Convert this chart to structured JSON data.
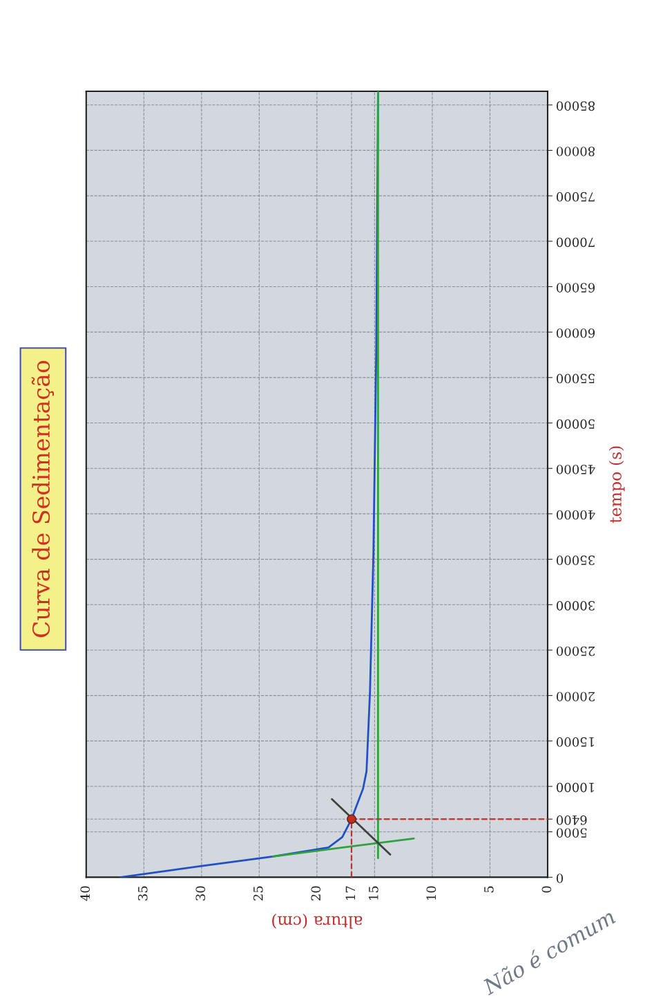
{
  "chart_data": {
    "type": "line",
    "title": "Curva de Sedimentação",
    "xlabel": "altura (cm)",
    "ylabel": "tempo (s)",
    "xlim": [
      40,
      0
    ],
    "ylim": [
      0,
      86500
    ],
    "xticks": [
      0,
      5,
      10,
      15,
      17,
      20,
      25,
      30,
      35,
      40
    ],
    "yticks": [
      0,
      5000,
      6400,
      10000,
      15000,
      20000,
      25000,
      30000,
      35000,
      40000,
      45000,
      50000,
      55000,
      60000,
      65000,
      70000,
      75000,
      80000,
      85000
    ],
    "grid": true,
    "series": [
      {
        "color": "#2050c8",
        "x": [
          37.0,
          30.1,
          23.8,
          19.0,
          17.8,
          17.0,
          16.0,
          15.7,
          15.4,
          15.1,
          14.85,
          14.7
        ],
        "values": [
          0,
          1220,
          2290,
          3280,
          4420,
          6400,
          9760,
          11660,
          20400,
          35700,
          58500,
          86500
        ]
      },
      {
        "type": "line",
        "color": "#30a040",
        "x": [
          14.7,
          14.7
        ],
        "values": [
          2100,
          86500
        ]
      },
      {
        "type": "line",
        "color": "#30a040",
        "x": [
          23.8,
          11.6
        ],
        "values": [
          2290,
          4270
        ]
      },
      {
        "type": "line",
        "color": "#404040",
        "x": [
          18.7,
          13.65
        ],
        "values": [
          8600,
          2500
        ]
      },
      {
        "type": "line",
        "color": "#c03030",
        "line_style": "dashed",
        "x": [
          17,
          17
        ],
        "values": [
          0,
          6400
        ]
      },
      {
        "type": "line",
        "color": "#c03030",
        "line_style": "dashed",
        "x": [
          17,
          0
        ],
        "values": [
          6400,
          6400
        ]
      },
      {
        "type": "scatter",
        "color": "#c03020",
        "marker": "circle",
        "x": [
          17
        ],
        "values": [
          6400
        ]
      }
    ],
    "annotations": [
      "Não é comum"
    ]
  }
}
